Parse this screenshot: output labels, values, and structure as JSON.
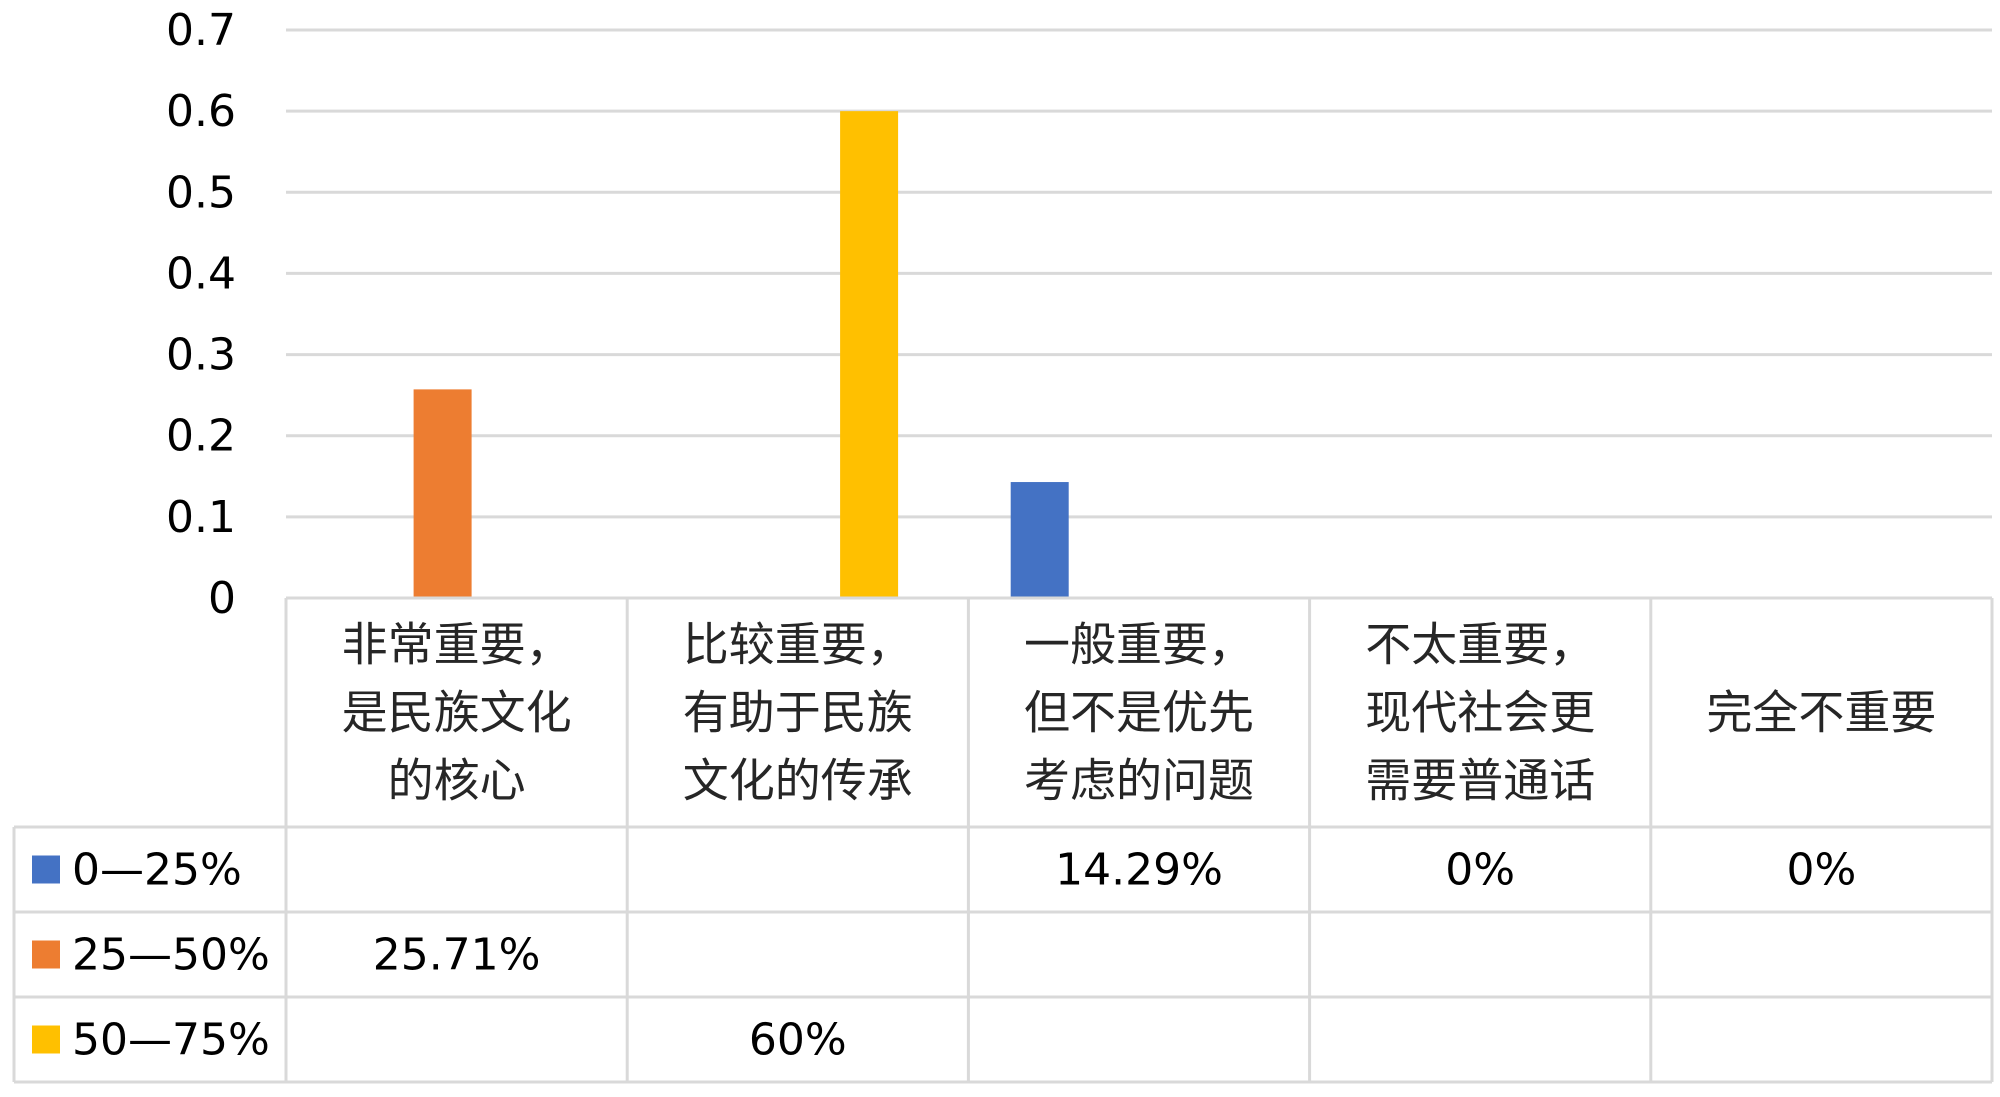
{
  "chart_data": {
    "type": "bar",
    "title": "",
    "xlabel": "",
    "ylabel": "",
    "ylim": [
      0,
      0.7
    ],
    "yticks": [
      "0",
      "0.1",
      "0.2",
      "0.3",
      "0.4",
      "0.5",
      "0.6",
      "0.7"
    ],
    "grid": true,
    "legend_position": "data-table-left",
    "categories": [
      [
        "非常重要，",
        "是民族文化",
        "的核心"
      ],
      [
        "比较重要，",
        "有助于民族",
        "文化的传承"
      ],
      [
        "一般重要，",
        "但不是优先",
        "考虑的问题"
      ],
      [
        "不太重要，",
        "现代社会更",
        "需要普通话"
      ],
      [
        "完全不重要"
      ]
    ],
    "series": [
      {
        "name": "0—25%",
        "color": "#4472C4",
        "values": [
          null,
          null,
          0.1429,
          0,
          0
        ],
        "labels": [
          "",
          "",
          "14.29%",
          "0%",
          "0%"
        ]
      },
      {
        "name": "25—50%",
        "color": "#ED7D31",
        "values": [
          0.2571,
          null,
          null,
          null,
          null
        ],
        "labels": [
          "25.71%",
          "",
          "",
          "",
          ""
        ]
      },
      {
        "name": "50—75%",
        "color": "#FFC000",
        "values": [
          null,
          0.6,
          null,
          null,
          null
        ],
        "labels": [
          "",
          "60%",
          "",
          "",
          ""
        ]
      }
    ]
  }
}
